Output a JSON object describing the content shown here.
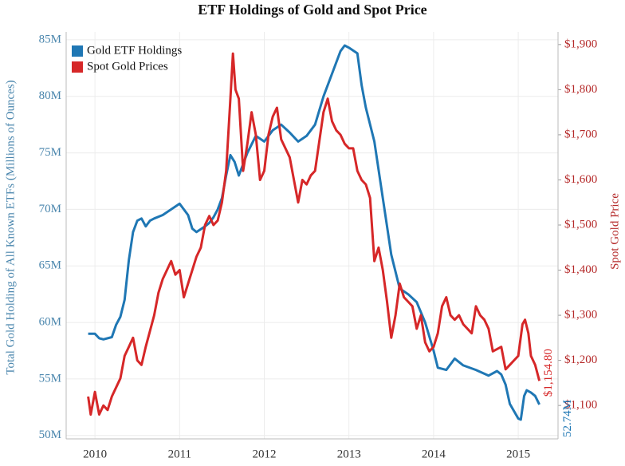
{
  "chart_data": {
    "type": "line",
    "title": "ETF Holdings of Gold and Spot Price",
    "ylabel": "Total Gold Holding of All Known ETFs (Millions of Ounces)",
    "y2label": "Spot Gold Price",
    "xlim": [
      2009.66,
      2015.47
    ],
    "xticks": [
      2010,
      2011,
      2012,
      2013,
      2014,
      2015
    ],
    "ylim": [
      49.7,
      85.7
    ],
    "yticks": [
      {
        "value": 50,
        "label": "50M"
      },
      {
        "value": 55,
        "label": "55M"
      },
      {
        "value": 60,
        "label": "60M"
      },
      {
        "value": 65,
        "label": "65M"
      },
      {
        "value": 70,
        "label": "70M"
      },
      {
        "value": 75,
        "label": "75M"
      },
      {
        "value": 80,
        "label": "80M"
      },
      {
        "value": 85,
        "label": "85M"
      }
    ],
    "y2lim": [
      1026,
      1928
    ],
    "y2ticks": [
      {
        "value": 1100,
        "label": "$1,100"
      },
      {
        "value": 1200,
        "label": "$1,200"
      },
      {
        "value": 1300,
        "label": "$1,300"
      },
      {
        "value": 1400,
        "label": "$1,400"
      },
      {
        "value": 1500,
        "label": "$1,500"
      },
      {
        "value": 1600,
        "label": "$1,600"
      },
      {
        "value": 1700,
        "label": "$1,700"
      },
      {
        "value": 1800,
        "label": "$1,800"
      },
      {
        "value": 1900,
        "label": "$1,900"
      }
    ],
    "grid": true,
    "legend": "top-left",
    "series": [
      {
        "name": "Gold ETF Holdings",
        "color": "#1f77b4",
        "x": [
          2009.92,
          2010.0,
          2010.05,
          2010.1,
          2010.2,
          2010.25,
          2010.3,
          2010.35,
          2010.4,
          2010.45,
          2010.5,
          2010.55,
          2010.6,
          2010.65,
          2010.7,
          2010.8,
          2010.9,
          2011.0,
          2011.05,
          2011.1,
          2011.15,
          2011.2,
          2011.3,
          2011.35,
          2011.4,
          2011.45,
          2011.5,
          2011.55,
          2011.6,
          2011.65,
          2011.7,
          2011.8,
          2011.9,
          2012.0,
          2012.1,
          2012.2,
          2012.3,
          2012.4,
          2012.5,
          2012.6,
          2012.7,
          2012.8,
          2012.9,
          2012.95,
          2013.0,
          2013.1,
          2013.15,
          2013.2,
          2013.3,
          2013.35,
          2013.4,
          2013.45,
          2013.5,
          2013.6,
          2013.7,
          2013.8,
          2013.9,
          2014.0,
          2014.05,
          2014.15,
          2014.25,
          2014.35,
          2014.5,
          2014.65,
          2014.75,
          2014.8,
          2014.85,
          2014.9,
          2015.0,
          2015.03,
          2015.07,
          2015.1,
          2015.15,
          2015.2,
          2015.25
        ],
        "values": [
          59.0,
          59.0,
          58.6,
          58.5,
          58.7,
          59.8,
          60.5,
          62.0,
          65.5,
          68.0,
          69.0,
          69.2,
          68.5,
          69.0,
          69.2,
          69.5,
          70.0,
          70.5,
          70.0,
          69.5,
          68.3,
          68.0,
          68.5,
          68.8,
          69.3,
          70.0,
          71.0,
          73.0,
          74.8,
          74.2,
          73.0,
          75.0,
          76.5,
          76.0,
          77.0,
          77.5,
          76.8,
          76.0,
          76.5,
          77.5,
          80.0,
          82.0,
          84.0,
          84.5,
          84.3,
          83.8,
          81.0,
          79.0,
          76.0,
          73.5,
          71.0,
          68.5,
          66.0,
          63.0,
          62.5,
          61.8,
          60.0,
          57.5,
          56.0,
          55.8,
          56.8,
          56.2,
          55.8,
          55.3,
          55.7,
          55.4,
          54.5,
          52.8,
          51.5,
          51.4,
          53.5,
          54.0,
          53.8,
          53.5,
          52.74
        ],
        "value_labels": [
          null,
          null,
          null,
          null,
          null,
          null,
          null,
          null,
          null,
          null,
          null,
          null,
          null,
          null,
          null,
          null,
          null,
          null,
          null,
          null,
          null,
          null,
          null,
          null,
          null,
          null,
          null,
          null,
          null,
          null,
          null,
          null,
          null,
          null,
          null,
          null,
          null,
          null,
          null,
          null,
          null,
          null,
          null,
          null,
          null,
          null,
          null,
          null,
          null,
          null,
          null,
          null,
          null,
          null,
          null,
          null,
          null,
          null,
          null,
          null,
          null,
          null,
          null,
          null,
          null,
          null,
          null,
          null,
          null,
          null,
          null,
          null,
          null,
          null,
          "52.74M"
        ]
      },
      {
        "name": "Spot Gold Prices",
        "color": "#d62728",
        "axis": "y2",
        "x": [
          2009.92,
          2009.95,
          2010.0,
          2010.05,
          2010.1,
          2010.15,
          2010.2,
          2010.3,
          2010.35,
          2010.4,
          2010.45,
          2010.5,
          2010.55,
          2010.6,
          2010.7,
          2010.75,
          2010.8,
          2010.85,
          2010.9,
          2010.95,
          2011.0,
          2011.05,
          2011.1,
          2011.2,
          2011.25,
          2011.3,
          2011.35,
          2011.4,
          2011.45,
          2011.5,
          2011.55,
          2011.6,
          2011.63,
          2011.66,
          2011.7,
          2011.75,
          2011.8,
          2011.85,
          2011.9,
          2011.95,
          2012.0,
          2012.05,
          2012.1,
          2012.15,
          2012.2,
          2012.3,
          2012.35,
          2012.4,
          2012.45,
          2012.5,
          2012.55,
          2012.6,
          2012.7,
          2012.75,
          2012.8,
          2012.85,
          2012.9,
          2012.95,
          2013.0,
          2013.05,
          2013.1,
          2013.15,
          2013.2,
          2013.25,
          2013.3,
          2013.35,
          2013.4,
          2013.45,
          2013.5,
          2013.55,
          2013.6,
          2013.65,
          2013.7,
          2013.75,
          2013.8,
          2013.85,
          2013.9,
          2013.95,
          2014.0,
          2014.05,
          2014.1,
          2014.15,
          2014.2,
          2014.25,
          2014.3,
          2014.35,
          2014.45,
          2014.5,
          2014.55,
          2014.6,
          2014.65,
          2014.7,
          2014.8,
          2014.85,
          2014.9,
          2014.95,
          2015.0,
          2015.05,
          2015.08,
          2015.12,
          2015.15,
          2015.2,
          2015.25
        ],
        "values": [
          1120,
          1080,
          1130,
          1080,
          1100,
          1090,
          1120,
          1160,
          1210,
          1230,
          1250,
          1200,
          1190,
          1230,
          1300,
          1350,
          1380,
          1400,
          1420,
          1390,
          1400,
          1340,
          1370,
          1430,
          1450,
          1500,
          1520,
          1500,
          1510,
          1550,
          1620,
          1780,
          1880,
          1800,
          1780,
          1620,
          1680,
          1750,
          1700,
          1600,
          1620,
          1700,
          1740,
          1760,
          1690,
          1650,
          1600,
          1550,
          1600,
          1590,
          1610,
          1620,
          1750,
          1780,
          1730,
          1710,
          1700,
          1680,
          1670,
          1670,
          1620,
          1600,
          1590,
          1560,
          1420,
          1450,
          1400,
          1330,
          1250,
          1300,
          1370,
          1340,
          1330,
          1320,
          1270,
          1300,
          1240,
          1220,
          1230,
          1260,
          1320,
          1340,
          1300,
          1290,
          1300,
          1280,
          1260,
          1320,
          1300,
          1290,
          1270,
          1220,
          1230,
          1180,
          1190,
          1200,
          1210,
          1280,
          1290,
          1260,
          1210,
          1190,
          1154.8
        ],
        "value_labels": [
          null,
          null,
          null,
          null,
          null,
          null,
          null,
          null,
          null,
          null,
          null,
          null,
          null,
          null,
          null,
          null,
          null,
          null,
          null,
          null,
          null,
          null,
          null,
          null,
          null,
          null,
          null,
          null,
          null,
          null,
          null,
          null,
          null,
          null,
          null,
          null,
          null,
          null,
          null,
          null,
          null,
          null,
          null,
          null,
          null,
          null,
          null,
          null,
          null,
          null,
          null,
          null,
          null,
          null,
          null,
          null,
          null,
          null,
          null,
          null,
          null,
          null,
          null,
          null,
          null,
          null,
          null,
          null,
          null,
          null,
          null,
          null,
          null,
          null,
          null,
          null,
          null,
          null,
          null,
          null,
          null,
          null,
          null,
          null,
          null,
          null,
          null,
          null,
          null,
          null,
          null,
          null,
          null,
          null,
          null,
          null,
          null,
          null,
          null,
          null,
          null,
          null,
          "$1,154.80"
        ]
      }
    ]
  }
}
